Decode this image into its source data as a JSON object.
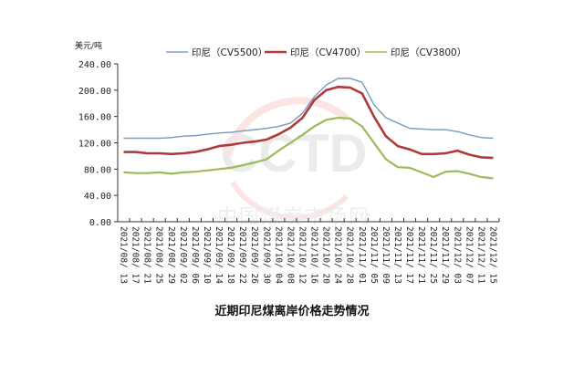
{
  "caption": "近期印尼煤离岸价格走势情况",
  "watermark": {
    "logo": "CCTD",
    "text": "中国煤炭市场网"
  },
  "chart_data": {
    "type": "line",
    "title": "",
    "ylabel": "美元/吨",
    "xlabel": "",
    "ylim": [
      0,
      240
    ],
    "yticks": [
      "0.00",
      "40.00",
      "80.00",
      "120.00",
      "160.00",
      "200.00",
      "240.00"
    ],
    "grid": false,
    "legend_position": "top",
    "x": [
      "2021/08/13",
      "2021/08/17",
      "2021/08/21",
      "2021/08/25",
      "2021/08/29",
      "2021/09/02",
      "2021/09/06",
      "2021/09/10",
      "2021/09/14",
      "2021/09/18",
      "2021/09/22",
      "2021/09/26",
      "2021/09/30",
      "2021/10/04",
      "2021/10/08",
      "2021/10/12",
      "2021/10/16",
      "2021/10/20",
      "2021/10/24",
      "2021/10/28",
      "2021/11/01",
      "2021/11/05",
      "2021/11/09",
      "2021/11/13",
      "2021/11/17",
      "2021/11/21",
      "2021/11/25",
      "2021/11/29",
      "2021/12/03",
      "2021/12/07",
      "2021/12/11",
      "2021/12/15"
    ],
    "series": [
      {
        "name": "印尼（CV5500）",
        "color": "#7f9fbf",
        "values": [
          127,
          127,
          127,
          127,
          128,
          130,
          131,
          133,
          135,
          136,
          138,
          140,
          142,
          145,
          150,
          165,
          190,
          208,
          218,
          218,
          212,
          178,
          158,
          150,
          142,
          141,
          140,
          140,
          137,
          132,
          128,
          127
        ]
      },
      {
        "name": "印尼（CV4700）",
        "color": "#b03a3a",
        "values": [
          106,
          106,
          104,
          104,
          103,
          104,
          106,
          110,
          115,
          117,
          120,
          122,
          125,
          133,
          143,
          158,
          185,
          200,
          205,
          204,
          195,
          160,
          130,
          115,
          110,
          103,
          103,
          104,
          108,
          102,
          98,
          97
        ]
      },
      {
        "name": "印尼（CV3800）",
        "color": "#9bbb59",
        "values": [
          75,
          74,
          74,
          75,
          73,
          75,
          76,
          78,
          80,
          82,
          86,
          90,
          95,
          108,
          120,
          132,
          145,
          155,
          158,
          157,
          145,
          120,
          95,
          83,
          82,
          75,
          68,
          76,
          77,
          73,
          68,
          66
        ]
      }
    ]
  }
}
